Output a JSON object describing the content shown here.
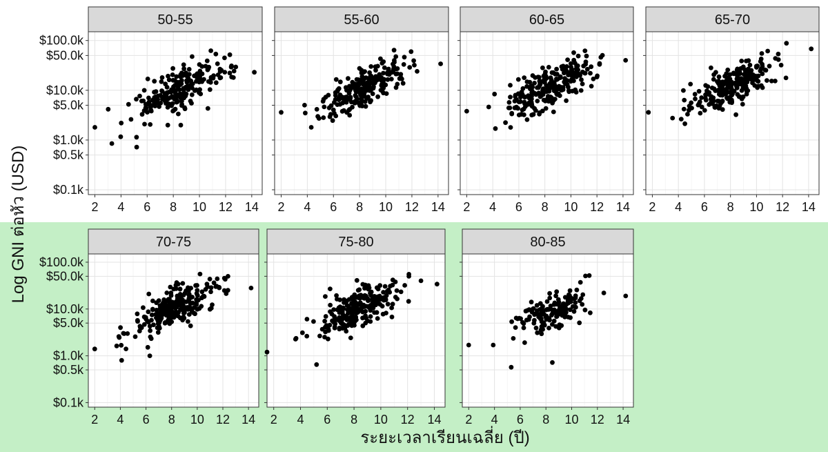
{
  "chart_data": {
    "type": "scatter",
    "facet_layout": "rows",
    "xlabel": "ระยะเวลาเรียนเฉลี่ย (ปี)",
    "ylabel": "Log GNI ต่อหัว (USD)",
    "y_scale": "log10",
    "xlim": [
      1.5,
      14.8
    ],
    "ylim": [
      80,
      150000
    ],
    "x_ticks": [
      2,
      4,
      6,
      8,
      10,
      12,
      14
    ],
    "y_ticks": [
      {
        "value": 100000,
        "label": "$100.0k"
      },
      {
        "value": 50000,
        "label": "$50.0k"
      },
      {
        "value": 10000,
        "label": "$10.0k"
      },
      {
        "value": 5000,
        "label": "$5.0k"
      },
      {
        "value": 1000,
        "label": "$1.0k"
      },
      {
        "value": 500,
        "label": "$0.5k"
      },
      {
        "value": 100,
        "label": "$0.1k"
      }
    ],
    "grid": true,
    "panels": [
      {
        "label": "50-55",
        "row": 0,
        "col": 0,
        "trend": {
          "slope": 0.125,
          "intercept": 2.95,
          "noise": 0.2,
          "xmin": 2.8,
          "xmax": 12.8,
          "center": 8.5,
          "spread": 1.8,
          "count": 210
        },
        "outliers": [
          {
            "x": 2.0,
            "y": 1800
          },
          {
            "x": 3.3,
            "y": 850
          },
          {
            "x": 5.2,
            "y": 720
          },
          {
            "x": 14.2,
            "y": 23000
          },
          {
            "x": 12.6,
            "y": 18000
          }
        ]
      },
      {
        "label": "55-60",
        "row": 0,
        "col": 1,
        "trend": {
          "slope": 0.125,
          "intercept": 3.0,
          "noise": 0.2,
          "xmin": 3.6,
          "xmax": 12.2,
          "center": 8.3,
          "spread": 1.7,
          "count": 220
        },
        "outliers": [
          {
            "x": 2.0,
            "y": 3600
          },
          {
            "x": 14.2,
            "y": 34000
          },
          {
            "x": 12.4,
            "y": 24000
          },
          {
            "x": 4.3,
            "y": 1800
          }
        ]
      },
      {
        "label": "60-65",
        "row": 0,
        "col": 2,
        "trend": {
          "slope": 0.12,
          "intercept": 3.05,
          "noise": 0.2,
          "xmin": 3.5,
          "xmax": 12.5,
          "center": 8.3,
          "spread": 1.7,
          "count": 240
        },
        "outliers": [
          {
            "x": 2.0,
            "y": 3800
          },
          {
            "x": 14.2,
            "y": 40000
          },
          {
            "x": 4.2,
            "y": 1700
          },
          {
            "x": 12.3,
            "y": 46000
          }
        ]
      },
      {
        "label": "65-70",
        "row": 0,
        "col": 3,
        "trend": {
          "slope": 0.125,
          "intercept": 3.1,
          "noise": 0.19,
          "xmin": 3.5,
          "xmax": 12.3,
          "center": 8.3,
          "spread": 1.6,
          "count": 240
        },
        "outliers": [
          {
            "x": 1.7,
            "y": 3600
          },
          {
            "x": 14.2,
            "y": 68000
          },
          {
            "x": 12.3,
            "y": 88000
          },
          {
            "x": 4.7,
            "y": 3300
          }
        ]
      },
      {
        "label": "70-75",
        "row": 1,
        "col": 0,
        "trend": {
          "slope": 0.125,
          "intercept": 3.0,
          "noise": 0.2,
          "xmin": 3.7,
          "xmax": 12.5,
          "center": 8.3,
          "spread": 1.7,
          "count": 250
        },
        "outliers": [
          {
            "x": 2.0,
            "y": 1400
          },
          {
            "x": 4.1,
            "y": 800
          },
          {
            "x": 14.2,
            "y": 28000
          },
          {
            "x": 6.3,
            "y": 1000
          },
          {
            "x": 12.4,
            "y": 50000
          }
        ]
      },
      {
        "label": "75-80",
        "row": 1,
        "col": 1,
        "trend": {
          "slope": 0.125,
          "intercept": 2.98,
          "noise": 0.2,
          "xmin": 3.6,
          "xmax": 12.2,
          "center": 8.3,
          "spread": 1.7,
          "count": 240
        },
        "outliers": [
          {
            "x": 1.5,
            "y": 1200
          },
          {
            "x": 14.2,
            "y": 34000
          },
          {
            "x": 5.2,
            "y": 650
          },
          {
            "x": 12.1,
            "y": 50000
          },
          {
            "x": 13.0,
            "y": 40000
          }
        ]
      },
      {
        "label": "80-85",
        "row": 1,
        "col": 2,
        "trend": {
          "slope": 0.12,
          "intercept": 2.95,
          "noise": 0.2,
          "xmin": 4.5,
          "xmax": 11.5,
          "center": 8.3,
          "spread": 1.4,
          "count": 150
        },
        "outliers": [
          {
            "x": 2.0,
            "y": 1700
          },
          {
            "x": 3.9,
            "y": 1700
          },
          {
            "x": 5.3,
            "y": 570
          },
          {
            "x": 8.5,
            "y": 720
          },
          {
            "x": 14.2,
            "y": 19000
          },
          {
            "x": 12.5,
            "y": 22000
          }
        ]
      }
    ]
  }
}
